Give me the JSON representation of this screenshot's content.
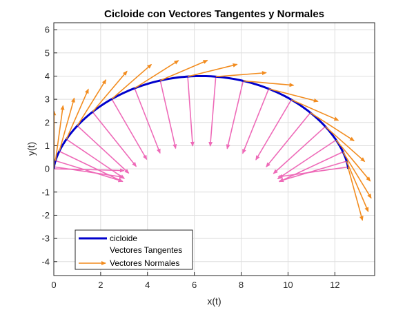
{
  "chart_data": {
    "type": "line",
    "title": "Cicloide con Vectores Tangentes y Normales",
    "xlabel": "x(t)",
    "ylabel": "y(t)",
    "xlim": [
      0,
      13.7
    ],
    "ylim": [
      -4.6,
      6.3
    ],
    "xticks": [
      0,
      2,
      4,
      6,
      8,
      10,
      12
    ],
    "yticks": [
      -4,
      -3,
      -2,
      -1,
      0,
      1,
      2,
      3,
      4,
      5,
      6
    ],
    "grid": true,
    "legend_position": "bottom-left",
    "series": [
      {
        "name": "cicloide",
        "color": "#0000cc",
        "radius": 2,
        "t_range": [
          0,
          6.2832
        ],
        "equation": "x = 2(t - sin t), y = 2(1 - cos t)"
      }
    ],
    "tangent_vectors": {
      "name": "Vectores Tangentes",
      "color": "#f28c1f",
      "t_values": [
        0.05,
        0.3,
        0.6,
        0.9,
        1.2,
        1.5,
        1.8,
        2.1,
        2.4,
        2.7,
        3.0,
        3.3,
        3.6,
        3.9,
        4.2,
        4.5,
        4.8,
        5.1,
        5.4,
        5.7,
        6.0
      ]
    },
    "normal_vectors": {
      "name": "Vectores Normales",
      "color": "#ee6ab8",
      "t_values": [
        0.05,
        0.3,
        0.6,
        0.9,
        1.2,
        1.5,
        1.8,
        2.1,
        2.4,
        2.7,
        3.0,
        3.3,
        3.6,
        3.9,
        4.2,
        4.5,
        4.8,
        5.1,
        5.4,
        5.7,
        6.0
      ]
    },
    "legend": [
      "cicloide",
      "Vectores Tangentes",
      "Vectores Normales"
    ]
  }
}
